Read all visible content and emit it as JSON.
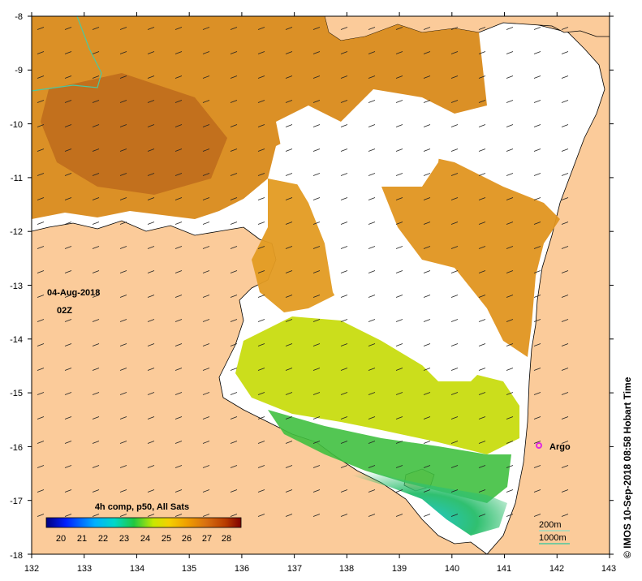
{
  "map": {
    "date": "04-Aug-2018",
    "time": "02Z",
    "x_ticks": [
      "132",
      "133",
      "134",
      "135",
      "136",
      "137",
      "138",
      "139",
      "140",
      "141",
      "142",
      "143"
    ],
    "y_ticks": [
      "-8",
      "-9",
      "-10",
      "-11",
      "-12",
      "-13",
      "-14",
      "-15",
      "-16",
      "-17",
      "-18"
    ],
    "legend_title": "4h comp, p50, All Sats",
    "legend_ticks": [
      "20",
      "21",
      "22",
      "23",
      "24",
      "25",
      "26",
      "27",
      "28"
    ],
    "isobath_labels": [
      "200m",
      "1000m"
    ],
    "isobath_colors": [
      "#9fdcc0",
      "#4cc8a0"
    ],
    "argo_label": "Argo",
    "argo_color": "#e02ae0",
    "land_color": "#fbcb9a",
    "colormap": [
      "#00007f",
      "#0010ff",
      "#00b0ff",
      "#00e0c0",
      "#20d040",
      "#d8e800",
      "#f4c000",
      "#ec9010",
      "#d06010",
      "#a02800",
      "#800000"
    ],
    "credit": "© IMOS 10-Sep-2018 08:58 Hobart Time"
  }
}
